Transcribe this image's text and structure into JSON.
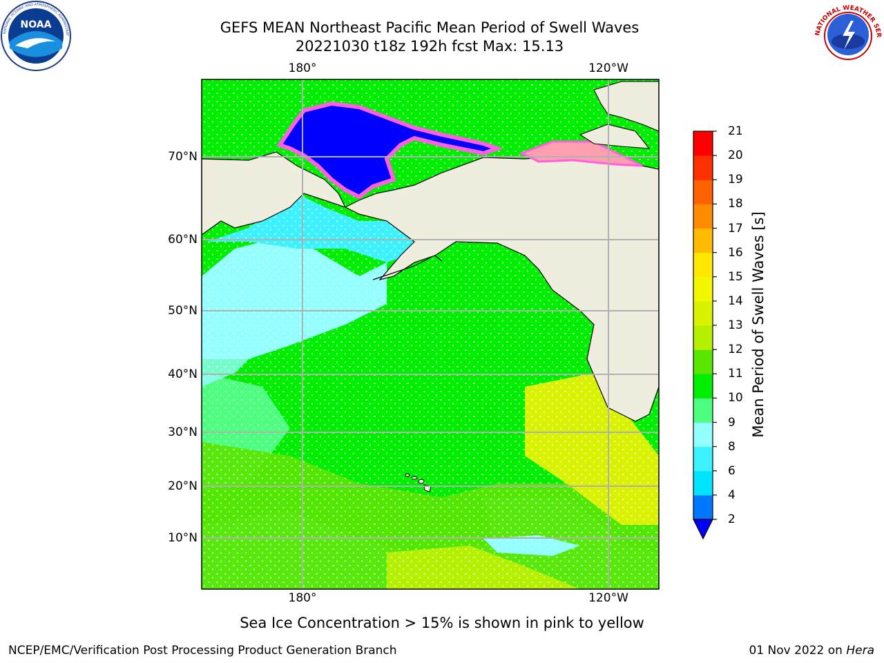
{
  "header": {
    "title_line1": "GEFS MEAN Northeast Pacific Mean Period of Swell Waves",
    "title_line2": "20221030 t18z 192h fcst   Max: 15.13"
  },
  "map": {
    "lon_labels_top": [
      "180°",
      "120°W"
    ],
    "lon_labels_bottom": [
      "180°",
      "120°W"
    ],
    "lat_labels": [
      "70°N",
      "60°N",
      "50°N",
      "40°N",
      "30°N",
      "20°N",
      "10°N"
    ],
    "land_color": "#efedde",
    "grid_color": "#b0b0b0"
  },
  "colorbar": {
    "title": "Mean Period of Swell Waves [s]",
    "tick_labels": [
      "2",
      "4",
      "6",
      "8",
      "9",
      "10",
      "11",
      "12",
      "13",
      "14",
      "15",
      "16",
      "17",
      "18",
      "19",
      "20",
      "21"
    ],
    "colors": [
      "#0000ff",
      "#0077ff",
      "#00e5ff",
      "#3df2ff",
      "#93ffff",
      "#4cff7e",
      "#00ee00",
      "#5ae600",
      "#b5f000",
      "#d9f200",
      "#f3f700",
      "#ffe800",
      "#ffbb00",
      "#ff8c00",
      "#ff6000",
      "#ff3000",
      "#ff0000"
    ]
  },
  "footnote": "Sea Ice Concentration > 15% is shown in pink to yellow",
  "credit": "NCEP/EMC/Verification Post Processing Product Generation Branch",
  "date_text": "01 Nov 2022 on ",
  "date_host": "Hera",
  "logos": {
    "noaa": {
      "center_text": "NOAA",
      "ring_text": "NATIONAL OCEANIC AND ATMOSPHERIC ADMINISTRATION · U.S. DEPARTMENT OF COMMERCE"
    },
    "nws": {
      "ring_text": "NATIONAL WEATHER SERVICE"
    }
  }
}
